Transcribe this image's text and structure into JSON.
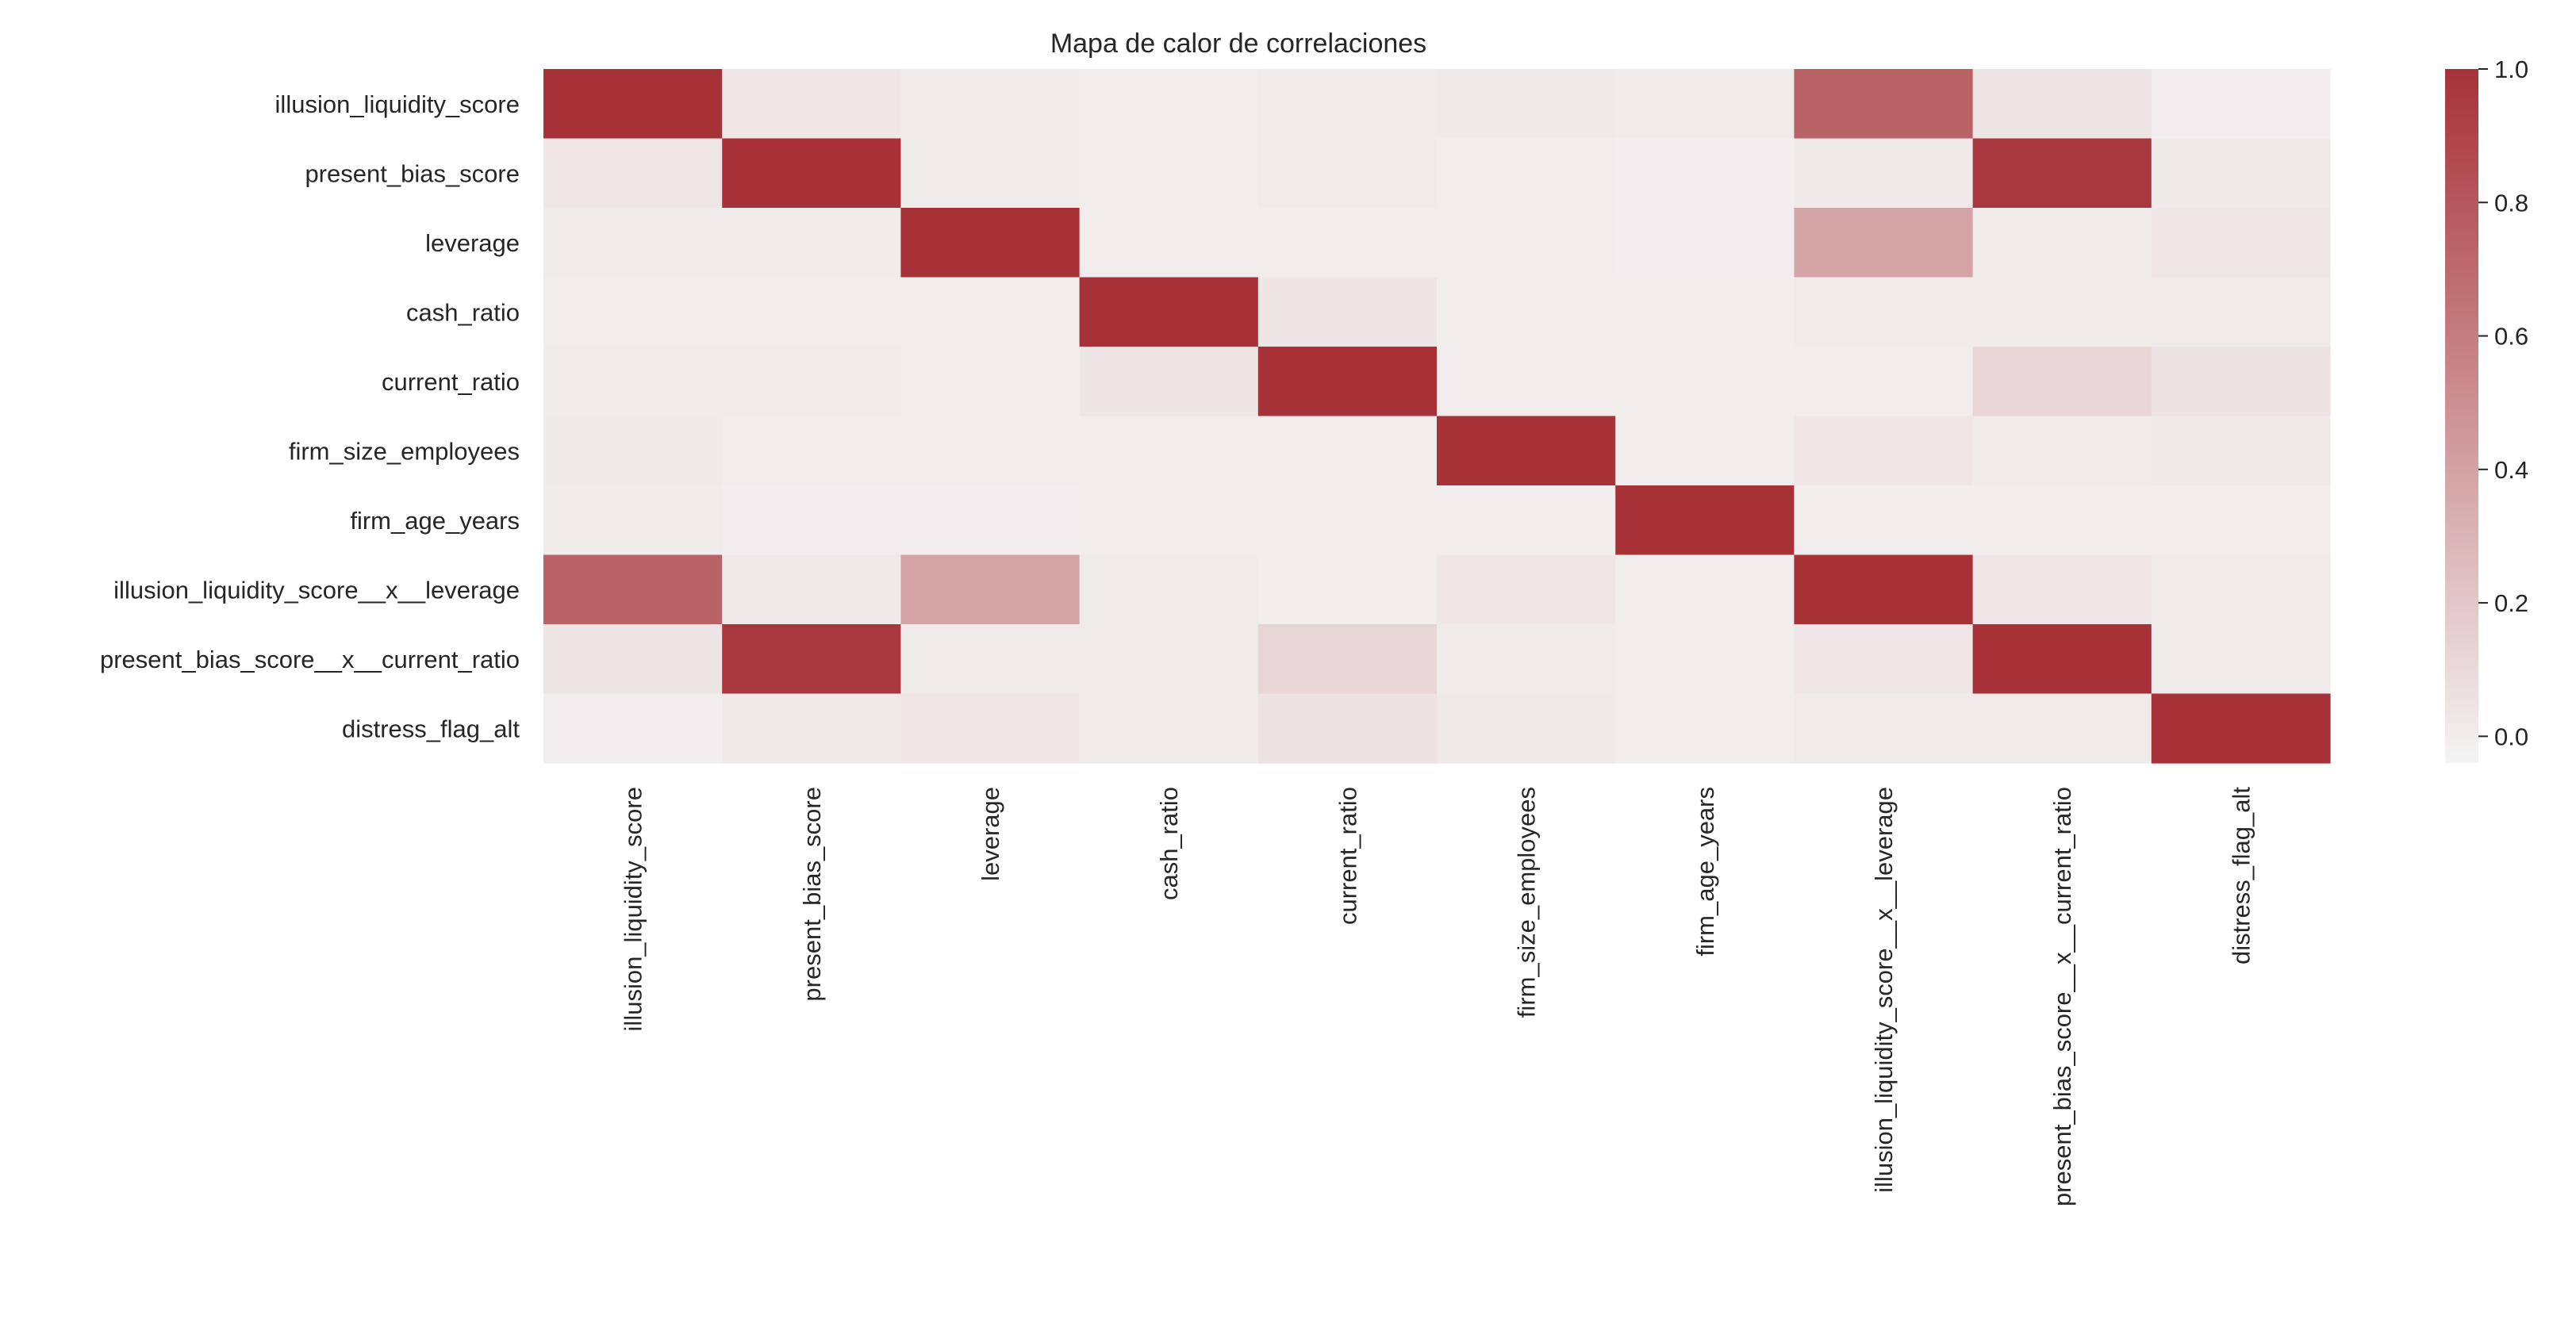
{
  "chart_data": {
    "type": "heatmap",
    "title": "Mapa de calor de correlaciones",
    "xlabel": "",
    "ylabel": "",
    "variables": [
      "illusion_liquidity_score",
      "present_bias_score",
      "leverage",
      "cash_ratio",
      "current_ratio",
      "firm_size_employees",
      "firm_age_years",
      "illusion_liquidity_score__x__leverage",
      "present_bias_score__x__current_ratio",
      "distress_flag_alt"
    ],
    "matrix": [
      [
        1.0,
        0.03,
        0.01,
        0.0,
        0.01,
        0.02,
        0.01,
        0.74,
        0.04,
        -0.01
      ],
      [
        0.03,
        1.0,
        0.01,
        0.0,
        0.01,
        0.0,
        -0.01,
        0.02,
        0.97,
        0.02
      ],
      [
        0.01,
        0.01,
        1.0,
        0.0,
        0.0,
        0.0,
        -0.01,
        0.39,
        0.01,
        0.03
      ],
      [
        0.0,
        0.0,
        0.0,
        1.0,
        0.04,
        0.0,
        0.0,
        0.01,
        0.01,
        0.01
      ],
      [
        0.01,
        0.01,
        0.0,
        0.04,
        1.0,
        0.0,
        0.0,
        0.0,
        0.12,
        0.05
      ],
      [
        0.02,
        0.0,
        0.0,
        0.0,
        0.0,
        1.0,
        0.0,
        0.03,
        0.01,
        0.02
      ],
      [
        0.01,
        -0.01,
        -0.01,
        0.0,
        0.0,
        0.0,
        1.0,
        0.0,
        0.0,
        0.0
      ],
      [
        0.74,
        0.02,
        0.39,
        0.01,
        0.0,
        0.03,
        0.0,
        1.0,
        0.03,
        0.01
      ],
      [
        0.04,
        0.97,
        0.01,
        0.01,
        0.12,
        0.01,
        0.0,
        0.03,
        1.0,
        0.01
      ],
      [
        -0.01,
        0.02,
        0.03,
        0.01,
        0.05,
        0.02,
        0.0,
        0.01,
        0.01,
        1.0
      ]
    ],
    "colorbar": {
      "range": [
        -0.04,
        1.0
      ],
      "ticks": [
        0.0,
        0.2,
        0.4,
        0.6,
        0.8,
        1.0
      ],
      "tick_labels": [
        "0.0",
        "0.2",
        "0.4",
        "0.6",
        "0.8",
        "1.0"
      ],
      "colors": {
        "low": "#f4f4f4",
        "high": "#a63238"
      }
    },
    "grid": false,
    "legend": "colorbar-right"
  }
}
